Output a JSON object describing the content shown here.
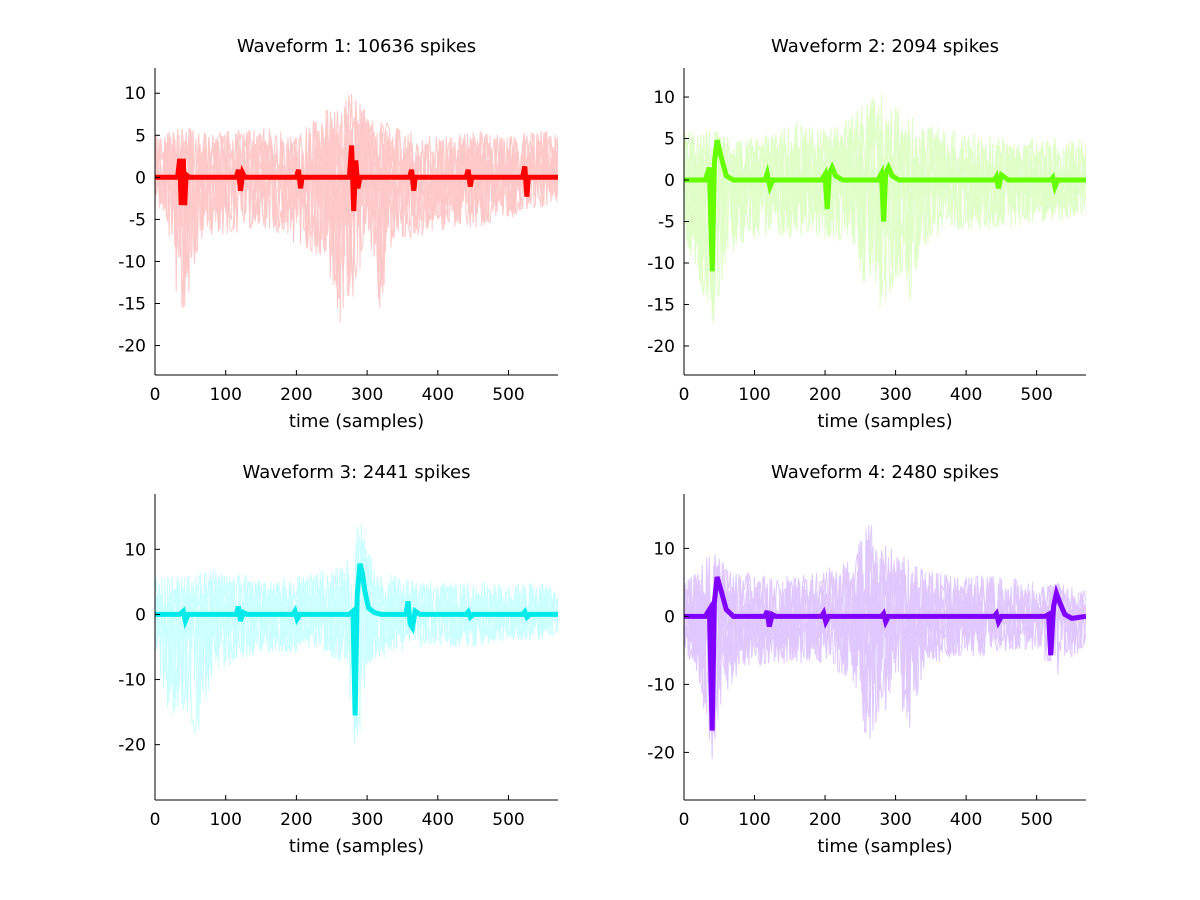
{
  "chart_data": [
    {
      "type": "line",
      "title": "Waveform 1: 10636 spikes",
      "xlabel": "time (samples)",
      "ylabel": "",
      "xlim": [
        0,
        570
      ],
      "ylim": [
        -23.5,
        13
      ],
      "xticks": [
        0,
        100,
        200,
        300,
        400,
        500
      ],
      "yticks": [
        10,
        5,
        0,
        -5,
        -10,
        -15,
        -20
      ],
      "grid": false,
      "colors": {
        "mean": "#ff0000",
        "traces": "#ffc8c8"
      },
      "series": [
        {
          "role": "mean",
          "x": [
            0,
            32,
            35,
            37,
            40,
            42,
            44,
            48,
            115,
            118,
            121,
            124,
            127,
            200,
            203,
            206,
            208,
            275,
            278,
            281,
            284,
            287,
            290,
            360,
            363,
            366,
            368,
            440,
            443,
            446,
            448,
            520,
            523,
            526,
            528,
            570
          ],
          "y": [
            0,
            0,
            2.2,
            -3.3,
            2.2,
            -3.3,
            0.3,
            0,
            0,
            0.9,
            -1.6,
            0.5,
            0,
            0,
            0.9,
            -1.3,
            0,
            0,
            3.8,
            -4.0,
            2.0,
            -1.3,
            0,
            0,
            0.9,
            -1.6,
            0,
            0,
            0.9,
            -1.1,
            0,
            0,
            1.3,
            -2.3,
            0,
            0
          ]
        },
        {
          "role": "trace-envelope-upper",
          "x": [
            0,
            40,
            80,
            120,
            160,
            200,
            240,
            260,
            280,
            300,
            340,
            380,
            420,
            460,
            500,
            540,
            570
          ],
          "y": [
            5,
            6,
            5.5,
            5.5,
            6,
            5,
            8,
            9,
            10.5,
            8,
            6,
            5,
            5,
            5.5,
            5,
            6,
            5
          ]
        },
        {
          "role": "trace-envelope-lower",
          "x": [
            0,
            15,
            20,
            40,
            60,
            80,
            120,
            160,
            200,
            240,
            255,
            260,
            280,
            300,
            320,
            340,
            380,
            420,
            460,
            500,
            540,
            570
          ],
          "y": [
            -4,
            -4,
            -11,
            -17,
            -9,
            -7,
            -7,
            -6,
            -8,
            -10,
            -15,
            -18.5,
            -15,
            -7,
            -16.5,
            -8,
            -7,
            -6,
            -6,
            -5,
            -4,
            -3
          ]
        }
      ]
    },
    {
      "type": "line",
      "title": "Waveform 2: 2094 spikes",
      "xlabel": "time (samples)",
      "ylabel": "",
      "xlim": [
        0,
        570
      ],
      "ylim": [
        -23.5,
        13.5
      ],
      "xticks": [
        0,
        100,
        200,
        300,
        400,
        500
      ],
      "yticks": [
        10,
        5,
        0,
        -5,
        -10,
        -15,
        -20
      ],
      "grid": false,
      "colors": {
        "mean": "#66ff00",
        "traces": "#e0ffc8"
      },
      "series": [
        {
          "role": "mean",
          "x": [
            0,
            30,
            36,
            40,
            43,
            47,
            52,
            60,
            70,
            80,
            115,
            118,
            122,
            126,
            130,
            195,
            200,
            203,
            206,
            210,
            215,
            225,
            275,
            280,
            283,
            286,
            290,
            295,
            305,
            440,
            443,
            446,
            450,
            455,
            460,
            520,
            523,
            526,
            530,
            570
          ],
          "y": [
            0,
            0,
            1.5,
            -11,
            2,
            4.8,
            3,
            0.5,
            0,
            0,
            0,
            0.8,
            -0.8,
            0,
            0,
            0,
            0.7,
            -3.5,
            0.8,
            1.5,
            0.5,
            0,
            0,
            0.8,
            -5.0,
            0.8,
            1.5,
            0.5,
            0,
            0,
            0.4,
            -1.0,
            0.6,
            0.3,
            0,
            0,
            0.3,
            -0.8,
            0,
            0
          ]
        },
        {
          "role": "trace-envelope-upper",
          "x": [
            0,
            40,
            80,
            120,
            160,
            200,
            240,
            260,
            280,
            300,
            340,
            380,
            420,
            460,
            500,
            540,
            570
          ],
          "y": [
            6,
            6,
            5,
            5.5,
            7,
            6,
            8,
            9.5,
            11,
            9,
            7,
            6,
            5.5,
            5,
            5,
            5.5,
            5
          ]
        },
        {
          "role": "trace-envelope-lower",
          "x": [
            0,
            20,
            40,
            60,
            80,
            120,
            160,
            200,
            240,
            260,
            280,
            300,
            320,
            340,
            380,
            420,
            460,
            500,
            540,
            570
          ],
          "y": [
            -7,
            -12,
            -18.5,
            -10,
            -8,
            -7,
            -7,
            -7,
            -8,
            -14,
            -17.5,
            -12,
            -15,
            -8,
            -6,
            -6,
            -6,
            -5,
            -5,
            -4
          ]
        }
      ]
    },
    {
      "type": "line",
      "title": "Waveform 3: 2441 spikes",
      "xlabel": "time (samples)",
      "ylabel": "",
      "xlim": [
        0,
        570
      ],
      "ylim": [
        -28.5,
        18.5
      ],
      "xticks": [
        0,
        100,
        200,
        300,
        400,
        500
      ],
      "yticks": [
        10,
        0,
        -10,
        -20
      ],
      "grid": false,
      "colors": {
        "mean": "#00eaea",
        "traces": "#ccffff"
      },
      "series": [
        {
          "role": "mean",
          "x": [
            0,
            35,
            40,
            43,
            47,
            115,
            118,
            121,
            125,
            130,
            195,
            198,
            201,
            205,
            275,
            280,
            283,
            286,
            290,
            293,
            297,
            302,
            310,
            320,
            355,
            358,
            361,
            364,
            368,
            375,
            440,
            443,
            446,
            450,
            520,
            523,
            526,
            530,
            570
          ],
          "y": [
            0,
            0,
            0.5,
            -1.0,
            0,
            0,
            1.2,
            -1.0,
            0.3,
            0,
            0,
            0.5,
            -0.7,
            0,
            0,
            0.5,
            -15.5,
            3,
            7.8,
            6.5,
            3.5,
            1,
            0.3,
            0,
            0,
            2.0,
            -1.5,
            -2.0,
            0.5,
            0,
            0,
            0.4,
            -0.4,
            0,
            0,
            0.4,
            -0.4,
            0,
            0
          ]
        },
        {
          "role": "trace-envelope-upper",
          "x": [
            0,
            40,
            80,
            120,
            160,
            200,
            240,
            270,
            290,
            310,
            340,
            380,
            420,
            460,
            500,
            540,
            570
          ],
          "y": [
            6,
            6,
            7,
            6.5,
            5,
            6,
            7,
            8,
            15.5,
            7,
            6,
            5,
            5,
            5,
            4.5,
            5,
            4
          ]
        },
        {
          "role": "trace-envelope-lower",
          "x": [
            0,
            20,
            40,
            60,
            80,
            120,
            160,
            200,
            240,
            270,
            285,
            300,
            340,
            380,
            420,
            460,
            500,
            540,
            570
          ],
          "y": [
            -6,
            -16,
            -15,
            -19.5,
            -10,
            -7,
            -6,
            -6,
            -6,
            -8,
            -23.5,
            -8,
            -6,
            -5,
            -5,
            -5,
            -4,
            -4,
            -3
          ]
        }
      ]
    },
    {
      "type": "line",
      "title": "Waveform 4: 2480 spikes",
      "xlabel": "time (samples)",
      "ylabel": "",
      "xlim": [
        0,
        570
      ],
      "ylim": [
        -27,
        18
      ],
      "xticks": [
        0,
        100,
        200,
        300,
        400,
        500
      ],
      "yticks": [
        10,
        0,
        -10,
        -20
      ],
      "grid": false,
      "colors": {
        "mean": "#8000ff",
        "traces": "#e0c8ff"
      },
      "series": [
        {
          "role": "mean",
          "x": [
            0,
            30,
            36,
            40,
            43,
            47,
            52,
            60,
            70,
            80,
            115,
            118,
            121,
            125,
            130,
            195,
            198,
            201,
            205,
            280,
            283,
            286,
            290,
            440,
            443,
            446,
            450,
            512,
            517,
            520,
            524,
            528,
            533,
            540,
            550,
            570
          ],
          "y": [
            0,
            0,
            1.0,
            -16.8,
            2,
            5.8,
            4,
            1,
            0,
            0,
            0,
            0.8,
            -1.5,
            0.3,
            0,
            0,
            0.5,
            -0.8,
            0,
            0,
            0.4,
            -0.8,
            0,
            0,
            0.4,
            -0.8,
            0,
            0,
            0.3,
            -5.7,
            1.5,
            3.4,
            2,
            0.3,
            -0.3,
            0
          ]
        },
        {
          "role": "trace-envelope-upper",
          "x": [
            0,
            40,
            80,
            120,
            160,
            200,
            240,
            260,
            280,
            300,
            340,
            380,
            420,
            460,
            500,
            540,
            570
          ],
          "y": [
            5,
            9.5,
            7,
            6,
            6,
            7,
            9,
            14.5,
            11,
            10,
            7,
            6,
            6,
            6,
            5,
            5,
            4
          ]
        },
        {
          "role": "trace-envelope-lower",
          "x": [
            0,
            20,
            40,
            60,
            80,
            120,
            160,
            200,
            240,
            260,
            280,
            300,
            320,
            340,
            380,
            420,
            460,
            500,
            530,
            570
          ],
          "y": [
            -5,
            -9,
            -22,
            -12,
            -8,
            -7,
            -7,
            -7,
            -10,
            -19,
            -15,
            -12,
            -17,
            -8,
            -6,
            -6,
            -5,
            -5,
            -9,
            -4
          ]
        }
      ]
    }
  ]
}
